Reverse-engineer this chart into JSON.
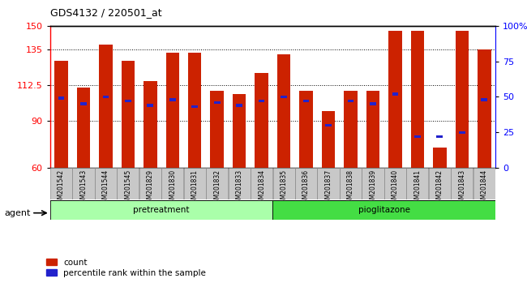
{
  "title": "GDS4132 / 220501_at",
  "samples": [
    "GSM201542",
    "GSM201543",
    "GSM201544",
    "GSM201545",
    "GSM201829",
    "GSM201830",
    "GSM201831",
    "GSM201832",
    "GSM201833",
    "GSM201834",
    "GSM201835",
    "GSM201836",
    "GSM201837",
    "GSM201838",
    "GSM201839",
    "GSM201840",
    "GSM201841",
    "GSM201842",
    "GSM201843",
    "GSM201844"
  ],
  "count_values": [
    128,
    111,
    138,
    128,
    115,
    133,
    133,
    109,
    107,
    120,
    132,
    109,
    96,
    109,
    109,
    147,
    147,
    73,
    147,
    135
  ],
  "percentile_values": [
    49,
    45,
    50,
    47,
    44,
    48,
    43,
    46,
    44,
    47,
    50,
    47,
    30,
    47,
    45,
    52,
    22,
    22,
    25,
    48
  ],
  "groups": [
    {
      "label": "pretreatment",
      "start": 0,
      "end": 10,
      "color": "#aaffaa"
    },
    {
      "label": "pioglitazone",
      "start": 10,
      "end": 20,
      "color": "#44dd44"
    }
  ],
  "ylim_left": [
    60,
    150
  ],
  "ylim_right": [
    0,
    100
  ],
  "yticks_left": [
    60,
    90,
    112.5,
    135,
    150
  ],
  "yticks_right": [
    0,
    25,
    50,
    75,
    100
  ],
  "bar_color": "#cc2200",
  "blue_color": "#2222cc",
  "tick_bg_color": "#c8c8c8",
  "agent_label": "agent",
  "legend_count": "count",
  "legend_pct": "percentile rank within the sample"
}
